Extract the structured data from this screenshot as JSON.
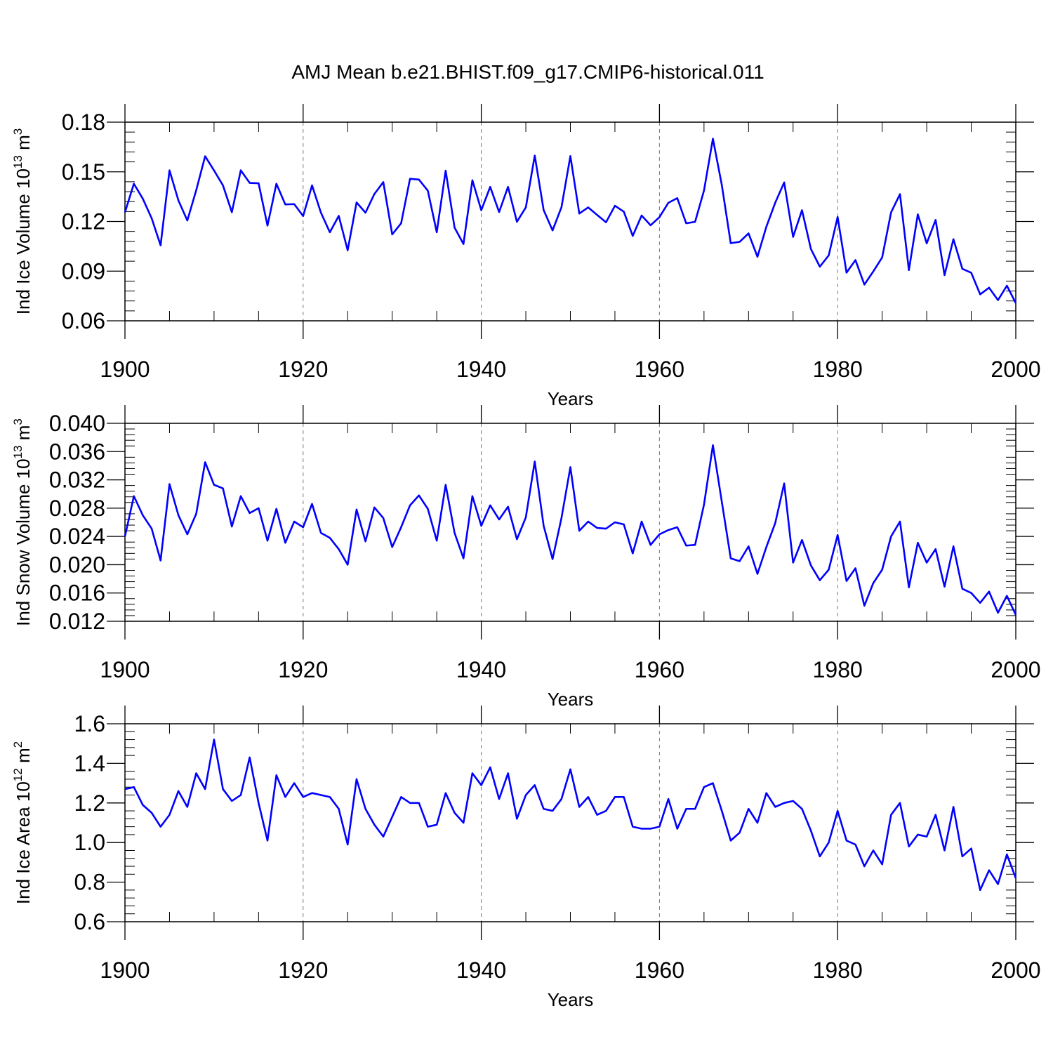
{
  "title": "AMJ Mean b.e21.BHIST.f09_g17.CMIP6-historical.011",
  "line_color": "#0000ff",
  "chart_data": [
    {
      "type": "line",
      "ylabel_main": "Ind Ice Volume 10",
      "ylabel_sup": "13",
      "ylabel_tail": " m",
      "ylabel_unit_sup": "3",
      "xlabel": "Years",
      "xlim": [
        1900,
        2000
      ],
      "ylim": [
        0.06,
        0.18
      ],
      "xticks": [
        1900,
        1920,
        1940,
        1960,
        1980,
        2000
      ],
      "xtick_labels": [
        "1900",
        "1920",
        "1940",
        "1960",
        "1980",
        "2000"
      ],
      "yticks": [
        0.06,
        0.09,
        0.12,
        0.15,
        0.18
      ],
      "ytick_labels": [
        "0.06",
        "0.09",
        "0.12",
        "0.15",
        "0.18"
      ],
      "y_minor_step": 0.006,
      "grid_x": [
        1920,
        1940,
        1960,
        1980
      ],
      "x_start": 1900,
      "values": [
        0.1255,
        0.1428,
        0.1338,
        0.1219,
        0.1056,
        0.1509,
        0.1327,
        0.1206,
        0.1389,
        0.1594,
        0.1508,
        0.1418,
        0.1256,
        0.1509,
        0.1433,
        0.1431,
        0.1175,
        0.1428,
        0.1303,
        0.1305,
        0.1233,
        0.1418,
        0.1253,
        0.1135,
        0.1234,
        0.1026,
        0.1315,
        0.1253,
        0.1366,
        0.1438,
        0.1122,
        0.1189,
        0.1458,
        0.1453,
        0.1386,
        0.1135,
        0.1507,
        0.1163,
        0.1064,
        0.1449,
        0.1268,
        0.1409,
        0.1257,
        0.1409,
        0.1198,
        0.1285,
        0.1598,
        0.1269,
        0.1146,
        0.1286,
        0.1595,
        0.1248,
        0.1285,
        0.124,
        0.1195,
        0.1295,
        0.1259,
        0.1113,
        0.1236,
        0.1177,
        0.1226,
        0.1313,
        0.1341,
        0.1189,
        0.1198,
        0.1387,
        0.17,
        0.142,
        0.1069,
        0.1077,
        0.1128,
        0.0987,
        0.1168,
        0.1314,
        0.1436,
        0.1107,
        0.1268,
        0.1034,
        0.0927,
        0.0995,
        0.1227,
        0.0891,
        0.0967,
        0.0819,
        0.0898,
        0.0983,
        0.1255,
        0.1365,
        0.0906,
        0.1243,
        0.1068,
        0.1209,
        0.0876,
        0.1093,
        0.0914,
        0.089,
        0.076,
        0.08,
        0.0725,
        0.0812,
        0.0707
      ]
    },
    {
      "type": "line",
      "ylabel_main": "Ind Snow Volume 10",
      "ylabel_sup": "13",
      "ylabel_tail": " m",
      "ylabel_unit_sup": "3",
      "xlabel": "Years",
      "xlim": [
        1900,
        2000
      ],
      "ylim": [
        0.012,
        0.04
      ],
      "xticks": [
        1900,
        1920,
        1940,
        1960,
        1980,
        2000
      ],
      "xtick_labels": [
        "1900",
        "1920",
        "1940",
        "1960",
        "1980",
        "2000"
      ],
      "yticks": [
        0.012,
        0.016,
        0.02,
        0.024,
        0.028,
        0.032,
        0.036,
        0.04
      ],
      "ytick_labels": [
        "0.012",
        "0.016",
        "0.020",
        "0.024",
        "0.028",
        "0.032",
        "0.036",
        "0.040"
      ],
      "y_minor_step": 0.0008,
      "grid_x": [
        1920,
        1940,
        1960,
        1980
      ],
      "x_start": 1900,
      "values": [
        0.024,
        0.0297,
        0.027,
        0.0251,
        0.0206,
        0.0314,
        0.027,
        0.0243,
        0.0272,
        0.0345,
        0.0313,
        0.0308,
        0.0254,
        0.0297,
        0.0273,
        0.028,
        0.0234,
        0.0279,
        0.0231,
        0.0261,
        0.0253,
        0.0286,
        0.0245,
        0.0238,
        0.0222,
        0.02,
        0.0278,
        0.0233,
        0.0281,
        0.0266,
        0.0225,
        0.0253,
        0.0284,
        0.0298,
        0.0279,
        0.0234,
        0.0313,
        0.0245,
        0.0209,
        0.0297,
        0.0255,
        0.0284,
        0.0264,
        0.0282,
        0.0236,
        0.0267,
        0.0346,
        0.0255,
        0.0208,
        0.0266,
        0.0338,
        0.0248,
        0.0261,
        0.0252,
        0.0251,
        0.026,
        0.0257,
        0.0216,
        0.0261,
        0.0228,
        0.0243,
        0.0249,
        0.0253,
        0.0227,
        0.0228,
        0.0285,
        0.0369,
        0.0289,
        0.0209,
        0.0205,
        0.0226,
        0.0187,
        0.0225,
        0.0259,
        0.0315,
        0.0203,
        0.0235,
        0.0199,
        0.0178,
        0.0193,
        0.0242,
        0.0177,
        0.0195,
        0.0142,
        0.0174,
        0.0193,
        0.024,
        0.0261,
        0.0168,
        0.0231,
        0.0203,
        0.0222,
        0.0169,
        0.0226,
        0.0166,
        0.016,
        0.0146,
        0.0162,
        0.0132,
        0.0156,
        0.0129
      ]
    },
    {
      "type": "line",
      "ylabel_main": "Ind Ice Area 10",
      "ylabel_sup": "12",
      "ylabel_tail": " m",
      "ylabel_unit_sup": "2",
      "xlabel": "Years",
      "xlim": [
        1900,
        2000
      ],
      "ylim": [
        0.6,
        1.6
      ],
      "xticks": [
        1900,
        1920,
        1940,
        1960,
        1980,
        2000
      ],
      "xtick_labels": [
        "1900",
        "1920",
        "1940",
        "1960",
        "1980",
        "2000"
      ],
      "yticks": [
        0.6,
        0.8,
        1.0,
        1.2,
        1.4,
        1.6
      ],
      "ytick_labels": [
        "0.6",
        "0.8",
        "1.0",
        "1.2",
        "1.4",
        "1.6"
      ],
      "y_minor_step": 0.04,
      "grid_x": [
        1920,
        1940,
        1960,
        1980
      ],
      "x_start": 1900,
      "values": [
        1.27,
        1.28,
        1.19,
        1.15,
        1.08,
        1.14,
        1.26,
        1.18,
        1.35,
        1.27,
        1.52,
        1.27,
        1.21,
        1.24,
        1.43,
        1.2,
        1.01,
        1.34,
        1.23,
        1.3,
        1.23,
        1.25,
        1.24,
        1.23,
        1.17,
        0.99,
        1.32,
        1.17,
        1.09,
        1.03,
        1.13,
        1.23,
        1.2,
        1.2,
        1.08,
        1.09,
        1.25,
        1.15,
        1.1,
        1.35,
        1.29,
        1.38,
        1.22,
        1.35,
        1.12,
        1.24,
        1.29,
        1.17,
        1.16,
        1.22,
        1.37,
        1.18,
        1.23,
        1.14,
        1.16,
        1.23,
        1.23,
        1.08,
        1.07,
        1.07,
        1.08,
        1.22,
        1.07,
        1.17,
        1.17,
        1.28,
        1.3,
        1.16,
        1.01,
        1.05,
        1.17,
        1.1,
        1.25,
        1.18,
        1.2,
        1.21,
        1.17,
        1.06,
        0.93,
        1.0,
        1.16,
        1.01,
        0.99,
        0.88,
        0.96,
        0.89,
        1.14,
        1.2,
        0.98,
        1.04,
        1.03,
        1.14,
        0.96,
        1.18,
        0.93,
        0.97,
        0.76,
        0.86,
        0.79,
        0.94,
        0.82
      ]
    }
  ]
}
